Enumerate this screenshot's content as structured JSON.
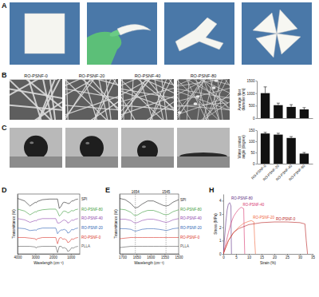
{
  "panel_labels": [
    "A",
    "B",
    "C",
    "D",
    "E",
    "H"
  ],
  "image_labels": [
    "RO-PSNF-0",
    "RO-PSNF-20",
    "RO-PSNF-40",
    "RO-PSNF-80"
  ],
  "chart_data": [
    {
      "type": "bar",
      "ylabel": "Average fiber diameter (nm)",
      "categories": [
        null,
        null,
        null,
        null
      ],
      "values": [
        1000,
        520,
        450,
        350
      ],
      "error": [
        250,
        80,
        90,
        70
      ],
      "color": "#111111",
      "ylim": [
        0,
        1500
      ],
      "yticks": [
        0,
        500,
        1000,
        1500
      ],
      "tick_labels": "y"
    },
    {
      "type": "bar",
      "ylabel": "Water contact angle (degree)",
      "categories": [
        "RO-PSNF-0",
        "RO-PSNF-20",
        "RO-PSNF-40",
        "RO-PSNF-80"
      ],
      "values": [
        135,
        130,
        115,
        45
      ],
      "error": [
        5,
        6,
        6,
        5
      ],
      "color": "#111111",
      "ylim": [
        0,
        150
      ],
      "yticks": [
        0,
        50,
        100,
        150
      ]
    },
    {
      "type": "line",
      "xlabel": "Wavelength (cm⁻¹)",
      "ylabel": "Transmittance (%)",
      "x": [
        4000,
        3600,
        3300,
        3000,
        2950,
        2900,
        2600,
        2200,
        1850,
        1750,
        1650,
        1540,
        1450,
        1380,
        1240,
        1180,
        1080,
        950,
        870,
        750,
        600
      ],
      "xlim": [
        4000,
        500
      ],
      "xticks": [
        4000,
        3000,
        2000,
        1000
      ],
      "ylim": [
        0,
        95
      ],
      "tick_labels": "x",
      "series": [
        {
          "name": "SPI",
          "color": "#222222",
          "values": [
            88,
            84,
            76,
            82,
            81,
            83,
            86,
            87,
            87,
            87,
            72,
            76,
            81,
            82,
            81,
            80,
            80,
            84,
            84,
            86,
            87
          ]
        },
        {
          "name": "RO-PSNF-80",
          "color": "#3a9a3a",
          "values": [
            71,
            68,
            62,
            67,
            66,
            68,
            70,
            71,
            71,
            67,
            60,
            63,
            67,
            68,
            67,
            65,
            66,
            69,
            68,
            70,
            71
          ]
        },
        {
          "name": "RO-PSNF-40",
          "color": "#8e44ad",
          "values": [
            56,
            54,
            50,
            53,
            52,
            54,
            56,
            56,
            56,
            49,
            49,
            51,
            53,
            54,
            52,
            49,
            50,
            54,
            53,
            55,
            56
          ]
        },
        {
          "name": "RO-PSNF-20",
          "color": "#2b5fb4",
          "values": [
            41,
            40,
            37,
            38,
            37,
            39,
            41,
            41,
            41,
            32,
            36,
            38,
            38,
            39,
            37,
            33,
            34,
            39,
            38,
            40,
            41
          ]
        },
        {
          "name": "RO-PSNF-0",
          "color": "#d9342b",
          "values": [
            26,
            26,
            25,
            24,
            22,
            24,
            26,
            26,
            26,
            16,
            25,
            26,
            23,
            24,
            22,
            18,
            19,
            24,
            23,
            25,
            26
          ]
        },
        {
          "name": "PLLA",
          "color": "#555555",
          "values": [
            12,
            12,
            12,
            11,
            9,
            11,
            12,
            12,
            12,
            2,
            12,
            12,
            9,
            10,
            8,
            4,
            5,
            10,
            9,
            11,
            12
          ]
        }
      ]
    },
    {
      "type": "line",
      "xlabel": "Wavelength (cm⁻¹)",
      "ylabel": "Transmittance (%)",
      "x": [
        1710,
        1690,
        1670,
        1660,
        1654,
        1645,
        1630,
        1610,
        1590,
        1570,
        1555,
        1545,
        1535,
        1520,
        1500
      ],
      "xlim": [
        1710,
        1500
      ],
      "xticks": [
        1700,
        1650,
        1600,
        1550,
        1500
      ],
      "ylim": [
        0,
        95
      ],
      "tick_labels": "x",
      "annotations": [
        {
          "x": 1654,
          "label": "1654"
        },
        {
          "x": 1545,
          "label": "1545"
        }
      ],
      "series": [
        {
          "name": "SPI",
          "color": "#222222",
          "values": [
            88,
            86,
            80,
            75,
            73,
            74,
            79,
            84,
            84,
            80,
            77,
            76,
            77,
            82,
            86
          ]
        },
        {
          "name": "RO-PSNF-80",
          "color": "#3a9a3a",
          "values": [
            71,
            70,
            66,
            62,
            61,
            62,
            66,
            69,
            69,
            66,
            63,
            62,
            63,
            67,
            70
          ]
        },
        {
          "name": "RO-PSNF-40",
          "color": "#8e44ad",
          "values": [
            55,
            55,
            53,
            50,
            49,
            50,
            53,
            55,
            55,
            53,
            51,
            50,
            51,
            54,
            56
          ]
        },
        {
          "name": "RO-PSNF-20",
          "color": "#2b5fb4",
          "values": [
            40,
            40,
            39,
            37,
            36,
            37,
            39,
            40,
            40,
            39,
            38,
            37,
            38,
            40,
            41
          ]
        },
        {
          "name": "RO-PSNF-0",
          "color": "#d9342b",
          "values": [
            24,
            25,
            26,
            26,
            26,
            26,
            26,
            26,
            26,
            26,
            26,
            26,
            26,
            26,
            26
          ]
        },
        {
          "name": "PLLA",
          "color": "#555555",
          "values": [
            10,
            11,
            12,
            12,
            12,
            12,
            12,
            12,
            12,
            12,
            12,
            12,
            12,
            12,
            12
          ]
        }
      ]
    },
    {
      "type": "line",
      "xlabel": "Strain (%)",
      "ylabel": "Stress (MPa)",
      "xlim": [
        0,
        35
      ],
      "xticks": [
        0,
        5,
        10,
        15,
        20,
        25,
        30,
        35
      ],
      "ylim": [
        0,
        4.5
      ],
      "yticks": [
        0,
        1,
        2,
        3,
        4
      ],
      "series": [
        {
          "name": "RO-PSNF-80",
          "color": "#5b2c83",
          "x": [
            0,
            0.5,
            1,
            1.5,
            2,
            2.5,
            3,
            3.1,
            3.2
          ],
          "values": [
            0,
            1.2,
            2.4,
            3.3,
            3.75,
            3.85,
            3.6,
            1.5,
            0
          ]
        },
        {
          "name": "RO-PSNF-40",
          "color": "#d6336c",
          "x": [
            0,
            1,
            2,
            3,
            4,
            5,
            6,
            7,
            8,
            8.2,
            8.4
          ],
          "values": [
            0,
            0.8,
            1.6,
            2.3,
            2.8,
            3.1,
            3.35,
            3.5,
            3.4,
            1.5,
            0
          ]
        },
        {
          "name": "RO-PSNF-20",
          "color": "#f0643c",
          "x": [
            0,
            1,
            2,
            4,
            6,
            8,
            10,
            11,
            12,
            12.3,
            12.6
          ],
          "values": [
            0,
            0.5,
            1.0,
            1.6,
            2.0,
            2.3,
            2.45,
            2.5,
            2.4,
            1.0,
            0
          ]
        },
        {
          "name": "RO-PSNF-0",
          "color": "#b71c1c",
          "x": [
            0,
            1,
            2,
            4,
            6,
            10,
            15,
            20,
            25,
            30,
            32,
            32.5,
            33
          ],
          "values": [
            0,
            0.5,
            1.0,
            1.6,
            1.9,
            2.2,
            2.35,
            2.4,
            2.4,
            2.35,
            2.25,
            1.0,
            0
          ]
        }
      ]
    }
  ]
}
